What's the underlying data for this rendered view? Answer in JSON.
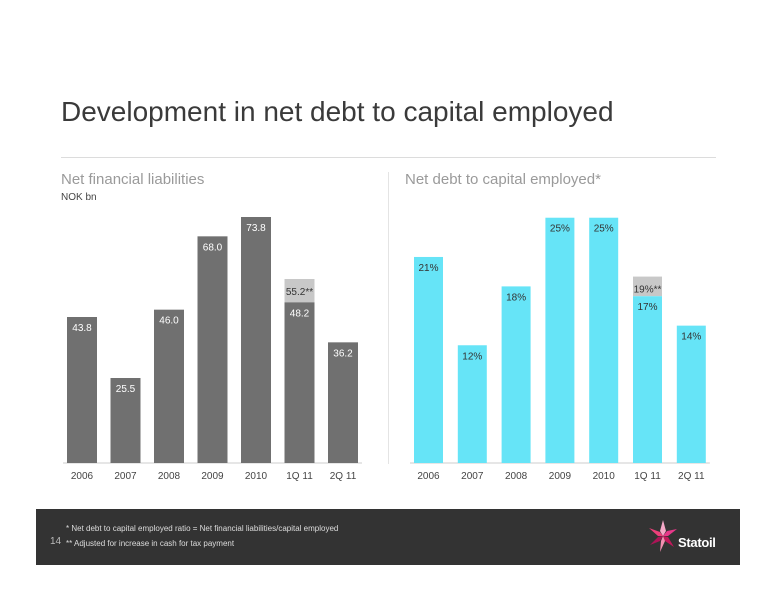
{
  "slide": {
    "title": "Development in net debt to capital employed",
    "page_number": "14",
    "notes": [
      "*  Net debt to capital employed ratio = Net financial liabilities/capital employed",
      "** Adjusted for increase in cash for tax payment"
    ],
    "logo_text": "Statoil",
    "logo_icon": "statoil-star-icon"
  },
  "chart_data": [
    {
      "type": "bar",
      "title": "Net financial liabilities",
      "ylabel": "NOK bn",
      "categories": [
        "2006",
        "2007",
        "2008",
        "2009",
        "2010",
        "1Q 11",
        "2Q 11"
      ],
      "values": [
        43.8,
        25.5,
        46.0,
        68.0,
        73.8,
        48.2,
        36.2
      ],
      "labels": [
        "43.8",
        "25.5",
        "46.0",
        "68.0",
        "73.8",
        "48.2",
        "36.2"
      ],
      "adjusted": {
        "category": "1Q 11",
        "value": 55.2,
        "label": "55.2**"
      },
      "ylim": [
        0,
        78
      ],
      "color": "#707070",
      "adjusted_color": "#c8c8c8",
      "label_color": "#ffffff",
      "adjusted_label_color": "#333333",
      "legend": "none",
      "grid": false
    },
    {
      "type": "bar",
      "title": "Net debt to capital employed*",
      "categories": [
        "2006",
        "2007",
        "2008",
        "2009",
        "2010",
        "1Q 11",
        "2Q 11"
      ],
      "values": [
        21,
        12,
        18,
        25,
        25,
        17,
        14
      ],
      "labels": [
        "21%",
        "12%",
        "18%",
        "25%",
        "25%",
        "17%",
        "14%"
      ],
      "adjusted": {
        "category": "1Q 11",
        "value": 19,
        "label": "19%**"
      },
      "ylim": [
        0,
        26.5
      ],
      "color": "#66e4f7",
      "adjusted_color": "#c8c8c8",
      "label_color": "#333333",
      "adjusted_label_color": "#333333",
      "legend": "none",
      "grid": false
    }
  ]
}
